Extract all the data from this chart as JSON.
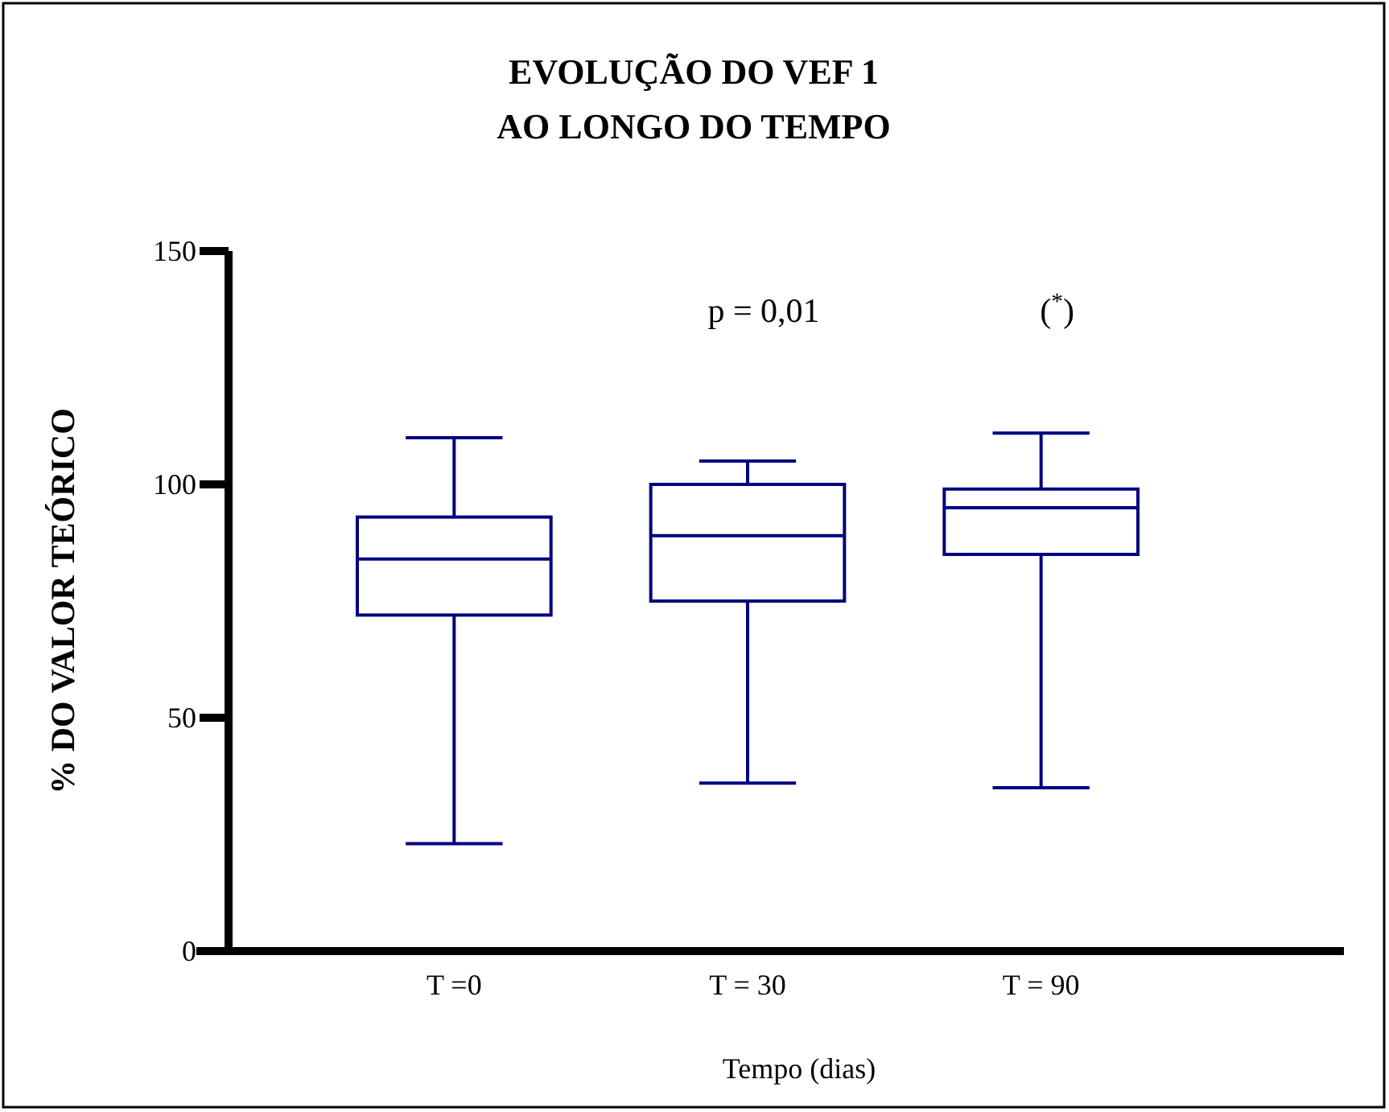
{
  "chart_data": {
    "type": "box",
    "title": "EVOLUÇÃO DO VEF 1\nAO LONGO DO TEMPO",
    "xlabel": "Tempo (dias)",
    "ylabel": "% DO VALOR TEÓRICO",
    "categories": [
      "T =0",
      "T = 30",
      "T = 90"
    ],
    "color": "#000080",
    "boxes": [
      {
        "low": 23,
        "q1": 72,
        "median": 84,
        "q3": 93,
        "high": 110
      },
      {
        "low": 36,
        "q1": 75,
        "median": 89,
        "q3": 100,
        "high": 105
      },
      {
        "low": 35,
        "q1": 85,
        "median": 95,
        "q3": 99,
        "high": 111
      }
    ],
    "ylim": [
      0,
      150
    ],
    "yticks": [
      0,
      50,
      100,
      150
    ],
    "grid": false,
    "annotations": [
      "p = 0,01",
      "($^{*}$)"
    ]
  }
}
